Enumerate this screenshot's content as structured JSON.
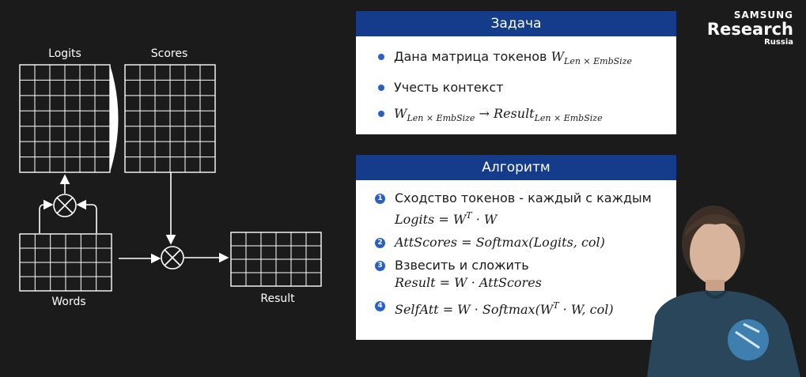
{
  "diagram": {
    "logits_label": "Logits",
    "scores_label": "Scores",
    "words_label": "Words",
    "result_label": "Result"
  },
  "task": {
    "title": "Задача",
    "items": [
      {
        "text": "Дана матрица токенов ",
        "formula_base": "W",
        "formula_sub": "Len × EmbSize"
      },
      {
        "text": "Учесть контекст"
      },
      {
        "formula_base": "W",
        "formula_sub": "Len × EmbSize",
        "arrow": "→",
        "formula_base2": "Result",
        "formula_sub2": "Len × EmbSize"
      }
    ]
  },
  "algorithm": {
    "title": "Алгоритм",
    "steps": [
      {
        "num": "1",
        "text": "Сходство токенов - каждый с каждым",
        "formula": "Logits = W",
        "formula_sup": "T",
        "formula_tail": " · W"
      },
      {
        "num": "2",
        "formula": "AttScores = Softmax(Logits, col)"
      },
      {
        "num": "3",
        "text": "Взвесить и сложить",
        "formula": "Result = W · AttScores"
      },
      {
        "num": "4",
        "formula": "SelfAtt = W · Softmax(W",
        "formula_sup": "T",
        "formula_tail": " · W, col)"
      }
    ]
  },
  "logo": {
    "line1": "SAMSUNG",
    "line2": "Research",
    "line3": "Russia"
  },
  "colors": {
    "panel_header": "#153c8a",
    "accent": "#2a5fc4",
    "background": "#1b1b1b"
  }
}
